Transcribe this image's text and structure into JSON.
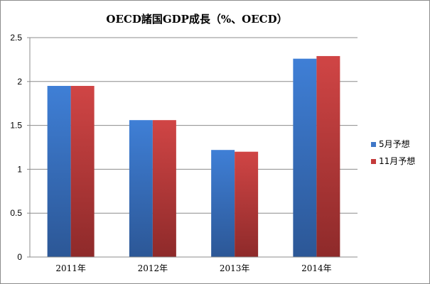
{
  "chart_data": {
    "type": "bar",
    "title": "OECD諸国GDP成長（%、OECD）",
    "categories": [
      "2011年",
      "2012年",
      "2013年",
      "2014年"
    ],
    "series": [
      {
        "name": "5月予想",
        "values": [
          1.95,
          1.56,
          1.22,
          2.26
        ],
        "color": "#3f77c7"
      },
      {
        "name": "11月予想",
        "values": [
          1.95,
          1.56,
          1.2,
          2.29
        ],
        "color": "#c43a3a"
      }
    ],
    "yticks": [
      "0",
      "0.5",
      "1",
      "1.5",
      "2",
      "2.5"
    ],
    "ylim": [
      0,
      2.5
    ],
    "grid": true,
    "legend_position": "right"
  }
}
